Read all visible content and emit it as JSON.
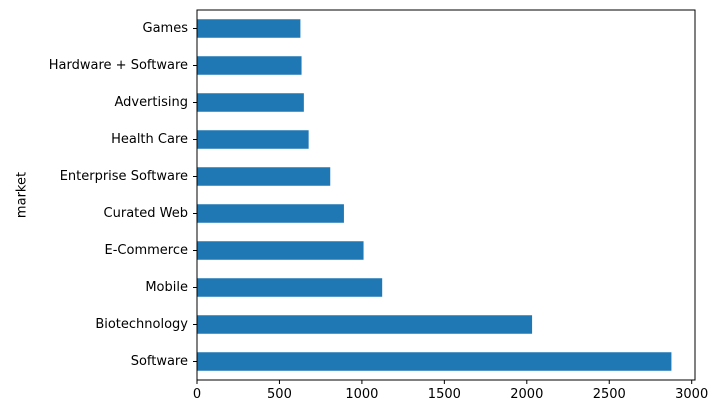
{
  "chart_data": {
    "type": "bar",
    "orientation": "horizontal",
    "categories": [
      "Games",
      "Hardware + Software",
      "Advertising",
      "Health Care",
      "Enterprise Software",
      "Curated Web",
      "E-Commerce",
      "Mobile",
      "Biotechnology",
      "Software"
    ],
    "values": [
      627,
      634,
      648,
      677,
      808,
      891,
      1010,
      1123,
      2032,
      2877
    ],
    "title": "",
    "xlabel": "",
    "ylabel": "market",
    "xlim": [
      0,
      3020
    ],
    "xticks": [
      0,
      500,
      1000,
      1500,
      2000,
      2500,
      3000
    ],
    "bar_color": "#1f77b4",
    "grid": false,
    "legend": "none"
  }
}
